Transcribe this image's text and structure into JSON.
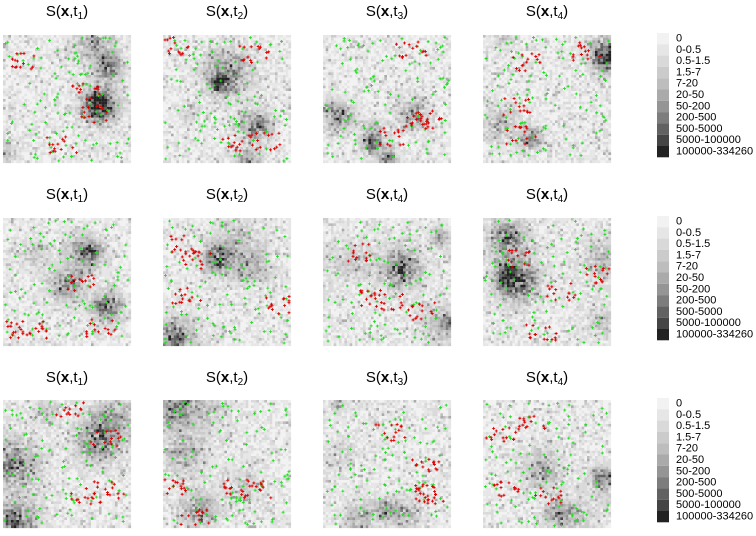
{
  "panels": [
    [
      {
        "func": "S(",
        "var": "x",
        "sep": ",t",
        "index": "1",
        "close": ")"
      },
      {
        "func": "S(",
        "var": "x",
        "sep": ",t",
        "index": "2",
        "close": ")"
      },
      {
        "func": "S(",
        "var": "x",
        "sep": ",t",
        "index": "3",
        "close": ")"
      },
      {
        "func": "S(",
        "var": "x",
        "sep": ",t",
        "index": "4",
        "close": ")"
      }
    ],
    [
      {
        "func": "S(",
        "var": "x",
        "sep": ",t",
        "index": "1",
        "close": ")"
      },
      {
        "func": "S(",
        "var": "x",
        "sep": ",t",
        "index": "2",
        "close": ")"
      },
      {
        "func": "S(",
        "var": "x",
        "sep": ",t",
        "index": "4",
        "close": ")"
      },
      {
        "func": "S(",
        "var": "x",
        "sep": ",t",
        "index": "4",
        "close": ")"
      }
    ],
    [
      {
        "func": "S(",
        "var": "x",
        "sep": ",t",
        "index": "1",
        "close": ")"
      },
      {
        "func": "S(",
        "var": "x",
        "sep": ",t",
        "index": "2",
        "close": ")"
      },
      {
        "func": "S(",
        "var": "x",
        "sep": ",t",
        "index": "3",
        "close": ")"
      },
      {
        "func": "S(",
        "var": "x",
        "sep": ",t",
        "index": "4",
        "close": ")"
      }
    ]
  ],
  "legend": {
    "labels": [
      "0",
      "0-0.5",
      "0.5-1.5",
      "1.5-7",
      "7-20",
      "20-50",
      "50-200",
      "200-500",
      "500-5000",
      "5000-100000",
      "100000-334260"
    ],
    "colors": [
      "#f2f2f2",
      "#e6e6e6",
      "#d9d9d9",
      "#cbcbcb",
      "#bdbdbd",
      "#aaaaaa",
      "#959595",
      "#7d7d7d",
      "#626262",
      "#454545",
      "#222222"
    ]
  }
}
